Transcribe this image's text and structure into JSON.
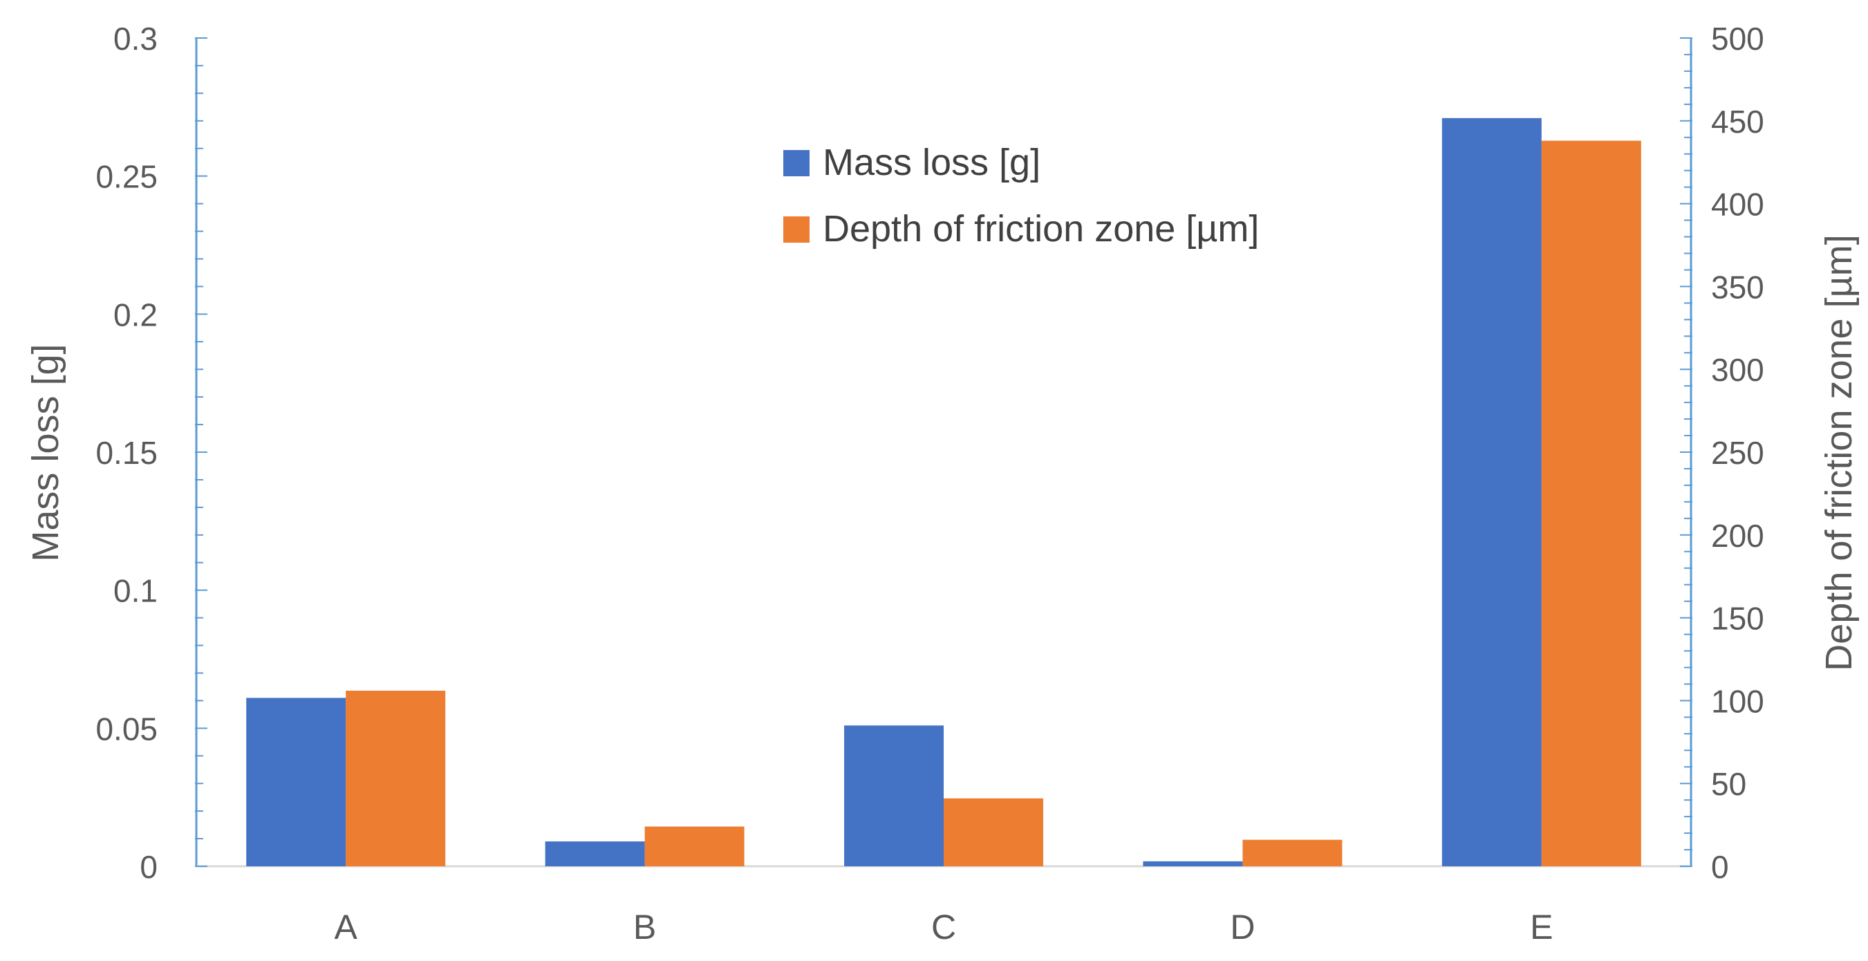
{
  "chart_data": {
    "type": "bar",
    "categories": [
      "A",
      "B",
      "C",
      "D",
      "E"
    ],
    "series": [
      {
        "name": "Mass loss [g]",
        "axis": "left",
        "color": "#4472C4",
        "values": [
          0.061,
          0.009,
          0.051,
          0.0018,
          0.271
        ]
      },
      {
        "name": "Depth of friction zone [µm]",
        "axis": "right",
        "color": "#ED7D31",
        "values": [
          106,
          24,
          41,
          16,
          438
        ]
      }
    ],
    "title": "",
    "ylabel": "Mass loss [g]",
    "ylabel_right": "Depth of friction zone [µm]",
    "ylim": [
      0,
      0.3
    ],
    "ylim_right": [
      0,
      500
    ],
    "yticks": [
      "0",
      "0.05",
      "0.1",
      "0.15",
      "0.2",
      "0.25",
      "0.3"
    ],
    "yticks_right": [
      "0",
      "50",
      "100",
      "150",
      "200",
      "250",
      "300",
      "350",
      "400",
      "450",
      "500"
    ],
    "legend_position": "top-center",
    "grid": false,
    "axis_color": "#5B9BD5"
  }
}
